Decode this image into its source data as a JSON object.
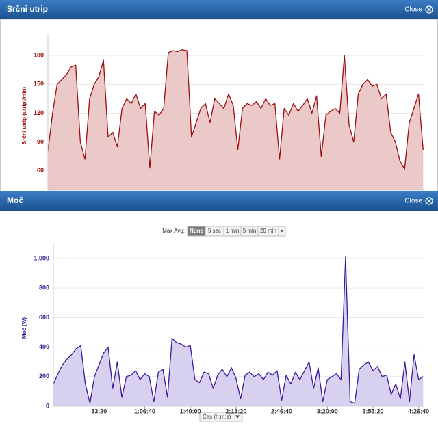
{
  "panels": [
    {
      "title": "Srčni utrip",
      "close": "Close"
    },
    {
      "title": "Moč",
      "close": "Close"
    }
  ],
  "toolbar": {
    "label": "Max Avg:",
    "buttons": [
      "None",
      "5 sec",
      "1 min",
      "5 min",
      "20 min"
    ]
  },
  "chart_data": [
    {
      "type": "area",
      "y_label": "Srčni utrip (utripi/min)",
      "color": "#9b0d0d",
      "fill": "#ebc9c9",
      "x": [
        0,
        200,
        400,
        600,
        800,
        1000,
        1200,
        1400,
        1600,
        1800,
        2000,
        2200,
        2400,
        2600,
        2800,
        3000,
        3200,
        3400,
        3600,
        3800,
        4000,
        4200,
        4400,
        4600,
        4800,
        5000,
        5200,
        5400,
        5600,
        5800,
        6000,
        6200,
        6400,
        6600,
        6800,
        7000,
        7200,
        7400,
        7600,
        7800,
        8000,
        8200,
        8400,
        8600,
        8800,
        9000,
        9200,
        9400,
        9600,
        9800,
        10000,
        10200,
        10400,
        10600,
        10800,
        11000,
        11200,
        11400,
        11600,
        11800,
        12000,
        12200,
        12400,
        12600,
        12800,
        13000,
        13200,
        13400,
        13600,
        13800,
        14000,
        14200,
        14400,
        14600,
        14800,
        15000,
        15200,
        15400,
        15600,
        15800,
        16000,
        16200
      ],
      "values": [
        80,
        120,
        150,
        155,
        160,
        168,
        170,
        90,
        72,
        135,
        150,
        158,
        175,
        95,
        100,
        85,
        125,
        135,
        130,
        140,
        125,
        130,
        63,
        122,
        118,
        125,
        183,
        185,
        184,
        186,
        185,
        95,
        110,
        125,
        130,
        110,
        135,
        130,
        125,
        140,
        128,
        82,
        125,
        130,
        128,
        132,
        125,
        135,
        128,
        130,
        72,
        125,
        118,
        130,
        122,
        128,
        135,
        120,
        138,
        75,
        118,
        122,
        125,
        120,
        180,
        108,
        90,
        140,
        150,
        155,
        148,
        150,
        135,
        140,
        100,
        90,
        70,
        62,
        110,
        125,
        140,
        82
      ],
      "xlim": [
        0,
        16250
      ],
      "ylim": [
        40,
        195
      ],
      "yticks": [
        60,
        90,
        120,
        150,
        180
      ],
      "grid": true
    },
    {
      "type": "area",
      "y_label": "Moč (W)",
      "x_label": "Čas (h:m:s)",
      "color": "#3a1a9a",
      "fill": "#d8d0ef",
      "x": [
        0,
        200,
        400,
        600,
        800,
        1000,
        1200,
        1400,
        1600,
        1800,
        2000,
        2200,
        2400,
        2600,
        2800,
        3000,
        3200,
        3400,
        3600,
        3800,
        4000,
        4200,
        4400,
        4600,
        4800,
        5000,
        5200,
        5400,
        5600,
        5800,
        6000,
        6200,
        6400,
        6600,
        6800,
        7000,
        7200,
        7400,
        7600,
        7800,
        8000,
        8200,
        8400,
        8600,
        8800,
        9000,
        9200,
        9400,
        9600,
        9800,
        10000,
        10200,
        10400,
        10600,
        10800,
        11000,
        11200,
        11400,
        11600,
        11800,
        12000,
        12200,
        12400,
        12600,
        12800,
        13000,
        13200,
        13400,
        13600,
        13800,
        14000,
        14200,
        14400,
        14600,
        14800,
        15000,
        15200,
        15400,
        15600,
        15800,
        16000,
        16200
      ],
      "values": [
        150,
        220,
        280,
        320,
        350,
        390,
        410,
        150,
        20,
        200,
        280,
        360,
        400,
        120,
        300,
        60,
        200,
        210,
        240,
        180,
        220,
        200,
        30,
        230,
        250,
        60,
        460,
        430,
        420,
        400,
        410,
        180,
        160,
        230,
        220,
        120,
        210,
        250,
        200,
        260,
        190,
        50,
        210,
        230,
        200,
        220,
        180,
        230,
        210,
        240,
        40,
        210,
        150,
        230,
        180,
        240,
        300,
        120,
        260,
        30,
        180,
        200,
        220,
        180,
        1010,
        30,
        20,
        250,
        280,
        300,
        240,
        270,
        200,
        210,
        80,
        150,
        50,
        300,
        30,
        350,
        180,
        200
      ],
      "xlim": [
        0,
        16250
      ],
      "ylim": [
        0,
        1060
      ],
      "xticks": [
        {
          "value": 2000,
          "label": "33:20"
        },
        {
          "value": 4000,
          "label": "1:06:40"
        },
        {
          "value": 6000,
          "label": "1:40:00"
        },
        {
          "value": 8000,
          "label": "2:13:20"
        },
        {
          "value": 10000,
          "label": "2:46:40"
        },
        {
          "value": 12000,
          "label": "3:20:00"
        },
        {
          "value": 14000,
          "label": "3:53:20"
        },
        {
          "value": 16000,
          "label": "4:26:40"
        }
      ],
      "yticks": [
        0,
        200,
        400,
        600,
        800,
        {
          "value": 1000,
          "label": "1,000"
        }
      ],
      "grid": true
    }
  ]
}
